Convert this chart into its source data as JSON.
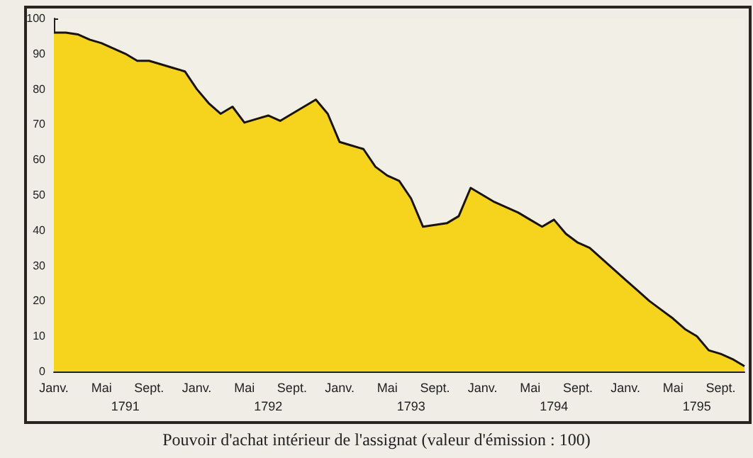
{
  "chart_data": {
    "type": "area",
    "title": "Pouvoir d'achat intérieur de l'assignat (valeur d'émission : 100)",
    "categories": [
      "Janv.",
      null,
      null,
      null,
      "Mai",
      null,
      "\n1791",
      null,
      "Sept.",
      null,
      null,
      null,
      "Janv.",
      null,
      null,
      null,
      "Mai",
      null,
      "\n1792",
      null,
      "Sept.",
      null,
      null,
      null,
      "Janv.",
      null,
      null,
      null,
      "Mai",
      null,
      "\n1793",
      null,
      "Sept.",
      null,
      null,
      null,
      "Janv.",
      null,
      null,
      null,
      "Mai",
      null,
      "\n1794",
      null,
      "Sept.",
      null,
      null,
      null,
      "Janv.",
      null,
      null,
      null,
      "Mai",
      null,
      "\n1795",
      null,
      "Sept.",
      null,
      null
    ],
    "values": [
      96,
      96,
      95.5,
      94,
      93,
      91.5,
      90,
      88,
      88,
      87,
      86,
      85,
      80,
      76,
      73,
      75,
      70.5,
      71.5,
      72.5,
      71,
      73,
      75,
      77,
      73,
      65,
      64,
      63,
      58,
      55.5,
      54,
      49,
      41,
      41.5,
      42,
      44,
      52,
      50,
      48,
      46.5,
      45,
      43,
      41,
      43,
      39,
      36.5,
      35,
      32,
      29,
      26,
      23,
      20,
      17.5,
      15,
      12,
      10,
      6,
      5,
      3.5,
      1.5
    ],
    "color": "#f6d31c",
    "ylim": [
      0,
      100
    ],
    "yticks": [
      0,
      10,
      20,
      30,
      40,
      50,
      60,
      70,
      80,
      90,
      100
    ],
    "marker": "none",
    "line_style": "solid"
  }
}
